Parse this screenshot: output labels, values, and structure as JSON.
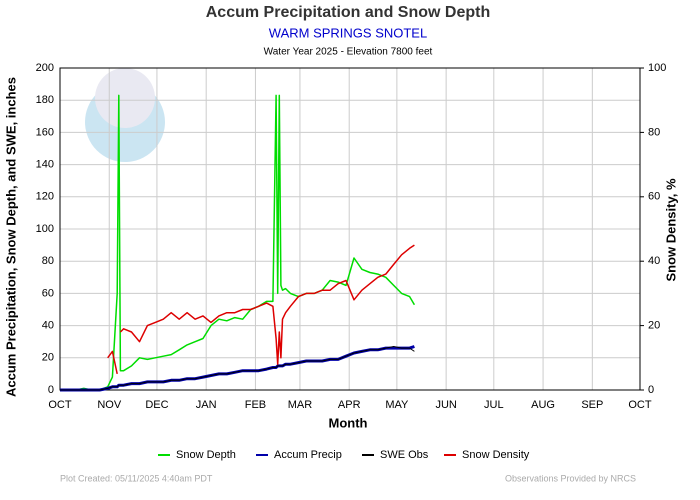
{
  "chart_data": {
    "type": "line",
    "title": "Accum Precipitation and Snow Depth",
    "subtitle": "WARM SPRINGS SNOTEL",
    "subtitle2": "Water Year 2025 -  Elevation 7800 feet",
    "xlabel": "Month",
    "ylabel": "Accum Precipitation, Snow Depth, and SWE, inches",
    "y2label": "Snow Density, %",
    "footer_left": "Plot Created: 05/11/2025 4:40am PDT",
    "footer_right": "Observations Provided by NRCS",
    "grid": true,
    "legend": "bottom",
    "xlim": [
      0,
      365
    ],
    "xticks": [
      {
        "value": 0,
        "label": "OCT"
      },
      {
        "value": 31,
        "label": "NOV"
      },
      {
        "value": 61,
        "label": "DEC"
      },
      {
        "value": 92,
        "label": "JAN"
      },
      {
        "value": 123,
        "label": "FEB"
      },
      {
        "value": 151,
        "label": "MAR"
      },
      {
        "value": 182,
        "label": "APR"
      },
      {
        "value": 212,
        "label": "MAY"
      },
      {
        "value": 243,
        "label": "JUN"
      },
      {
        "value": 273,
        "label": "JUL"
      },
      {
        "value": 304,
        "label": "AUG"
      },
      {
        "value": 335,
        "label": "SEP"
      },
      {
        "value": 365,
        "label": "OCT"
      }
    ],
    "ylim": [
      0,
      200
    ],
    "yticks": [
      0,
      20,
      40,
      60,
      80,
      100,
      120,
      140,
      160,
      180,
      200
    ],
    "y2lim": [
      0,
      100
    ],
    "y2ticks": [
      0,
      20,
      40,
      60,
      80,
      100
    ],
    "x": [
      0,
      5,
      10,
      15,
      20,
      25,
      30,
      33,
      36,
      37,
      38,
      40,
      45,
      50,
      55,
      60,
      65,
      70,
      75,
      80,
      85,
      90,
      95,
      100,
      105,
      110,
      115,
      120,
      125,
      130,
      134,
      136,
      137,
      138,
      139,
      140,
      142,
      145,
      150,
      155,
      160,
      165,
      170,
      175,
      180,
      185,
      190,
      195,
      200,
      205,
      210,
      215,
      220,
      223
    ],
    "series": [
      {
        "name": "Snow Depth",
        "color": "#00dd00",
        "width": 1.5,
        "values": [
          0,
          0,
          0,
          1,
          0,
          0,
          2,
          8,
          60,
          183,
          12,
          12,
          15,
          20,
          19,
          20,
          21,
          22,
          25,
          28,
          30,
          32,
          40,
          44,
          43,
          45,
          44,
          50,
          52,
          55,
          55,
          183,
          60,
          183,
          65,
          62,
          63,
          60,
          58,
          60,
          60,
          62,
          68,
          67,
          65,
          82,
          75,
          73,
          72,
          70,
          65,
          60,
          58,
          53
        ]
      },
      {
        "name": "Accum Precip",
        "color": "#0000aa",
        "width": 3,
        "values": [
          0,
          0,
          0,
          0,
          0,
          0,
          1,
          2,
          2,
          3,
          3,
          3,
          4,
          4,
          5,
          5,
          5,
          6,
          6,
          7,
          7,
          8,
          9,
          10,
          10,
          11,
          12,
          12,
          12,
          13,
          14,
          14,
          15,
          15,
          15,
          15,
          16,
          16,
          17,
          18,
          18,
          18,
          19,
          19,
          21,
          23,
          24,
          25,
          25,
          26,
          26,
          26,
          26,
          27
        ]
      },
      {
        "name": "SWE Obs",
        "color": "#000000",
        "width": 1,
        "values": [
          0,
          0,
          0,
          0,
          0,
          0,
          1,
          2,
          2,
          3,
          3,
          3,
          4,
          4,
          5,
          5,
          5,
          6,
          6,
          7,
          7,
          8,
          9,
          10,
          10,
          11,
          12,
          12,
          12,
          13,
          14,
          14,
          15,
          15,
          15,
          15,
          16,
          16,
          17,
          18,
          18,
          18,
          19,
          19,
          21,
          23,
          24,
          25,
          25,
          26,
          27,
          26,
          26,
          24
        ]
      },
      {
        "name": "Snow Density",
        "color": "#dd0000",
        "width": 1.5,
        "axis": "y2",
        "values": [
          null,
          null,
          null,
          null,
          null,
          null,
          10,
          12,
          5,
          null,
          18,
          19,
          18,
          15,
          20,
          21,
          22,
          24,
          22,
          24,
          22,
          23,
          21,
          23,
          24,
          24,
          25,
          25,
          26,
          27,
          26,
          16,
          8,
          18,
          10,
          22,
          24,
          26,
          29,
          30,
          30,
          31,
          31,
          33,
          34,
          28,
          31,
          33,
          35,
          36,
          39,
          42,
          44,
          45
        ]
      }
    ]
  }
}
